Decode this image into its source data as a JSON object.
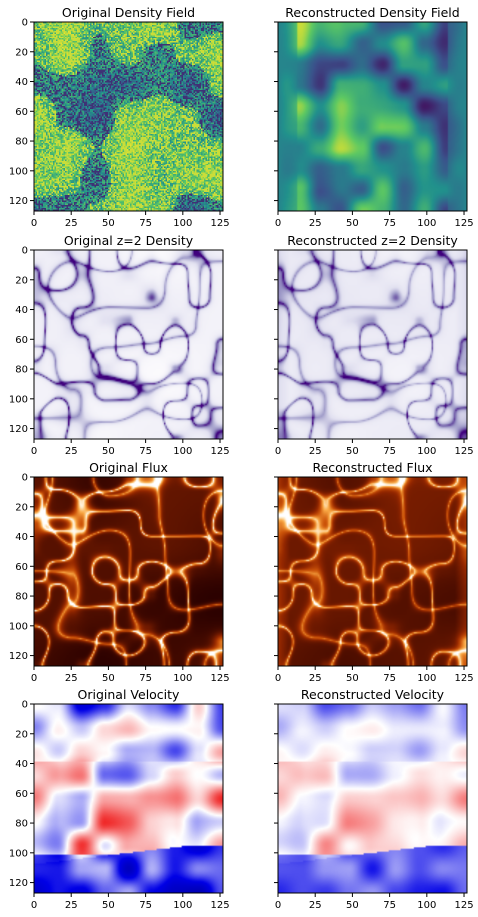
{
  "chart_data": [
    {
      "type": "heatmap",
      "title": "Original Density Field",
      "colormap": "viridis",
      "texture": "noise",
      "xlim": [
        0,
        127
      ],
      "ylim": [
        127,
        0
      ],
      "xticks": [
        0,
        25,
        50,
        75,
        100,
        125
      ],
      "yticks": [
        0,
        20,
        40,
        60,
        80,
        100,
        120
      ],
      "show_yticklabels": true
    },
    {
      "type": "heatmap",
      "title": "Reconstructed Density Field",
      "colormap": "viridis",
      "texture": "blobs",
      "xlim": [
        0,
        127
      ],
      "ylim": [
        127,
        0
      ],
      "xticks": [
        0,
        25,
        50,
        75,
        100,
        125
      ],
      "yticks": [
        0,
        20,
        40,
        60,
        80,
        100,
        120
      ],
      "show_yticklabels": false
    },
    {
      "type": "heatmap",
      "title": "Original z=2 Density",
      "colormap": "purples",
      "texture": "web",
      "xlim": [
        0,
        127
      ],
      "ylim": [
        127,
        0
      ],
      "xticks": [
        0,
        25,
        50,
        75,
        100,
        125
      ],
      "yticks": [
        0,
        20,
        40,
        60,
        80,
        100,
        120
      ],
      "show_yticklabels": true
    },
    {
      "type": "heatmap",
      "title": "Reconstructed z=2 Density",
      "colormap": "purples",
      "texture": "web-soft",
      "xlim": [
        0,
        127
      ],
      "ylim": [
        127,
        0
      ],
      "xticks": [
        0,
        25,
        50,
        75,
        100,
        125
      ],
      "yticks": [
        0,
        20,
        40,
        60,
        80,
        100,
        120
      ],
      "show_yticklabels": false
    },
    {
      "type": "heatmap",
      "title": "Original Flux",
      "colormap": "gist_heat",
      "texture": "web",
      "xlim": [
        0,
        127
      ],
      "ylim": [
        127,
        0
      ],
      "xticks": [
        0,
        25,
        50,
        75,
        100,
        125
      ],
      "yticks": [
        0,
        20,
        40,
        60,
        80,
        100,
        120
      ],
      "show_yticklabels": true
    },
    {
      "type": "heatmap",
      "title": "Reconstructed Flux",
      "colormap": "gist_heat",
      "texture": "web-soft",
      "xlim": [
        0,
        127
      ],
      "ylim": [
        127,
        0
      ],
      "xticks": [
        0,
        25,
        50,
        75,
        100,
        125
      ],
      "yticks": [
        0,
        20,
        40,
        60,
        80,
        100,
        120
      ],
      "show_yticklabels": false
    },
    {
      "type": "heatmap",
      "title": "Original Velocity",
      "colormap": "seismic",
      "texture": "velocity",
      "xlim": [
        0,
        127
      ],
      "ylim": [
        127,
        0
      ],
      "xticks": [
        0,
        25,
        50,
        75,
        100,
        125
      ],
      "yticks": [
        0,
        20,
        40,
        60,
        80,
        100,
        120
      ],
      "show_yticklabels": true
    },
    {
      "type": "heatmap",
      "title": "Reconstructed Velocity",
      "colormap": "seismic",
      "texture": "velocity-soft",
      "xlim": [
        0,
        127
      ],
      "ylim": [
        127,
        0
      ],
      "xticks": [
        0,
        25,
        50,
        75,
        100,
        125
      ],
      "yticks": [
        0,
        20,
        40,
        60,
        80,
        100,
        120
      ],
      "show_yticklabels": false
    }
  ]
}
